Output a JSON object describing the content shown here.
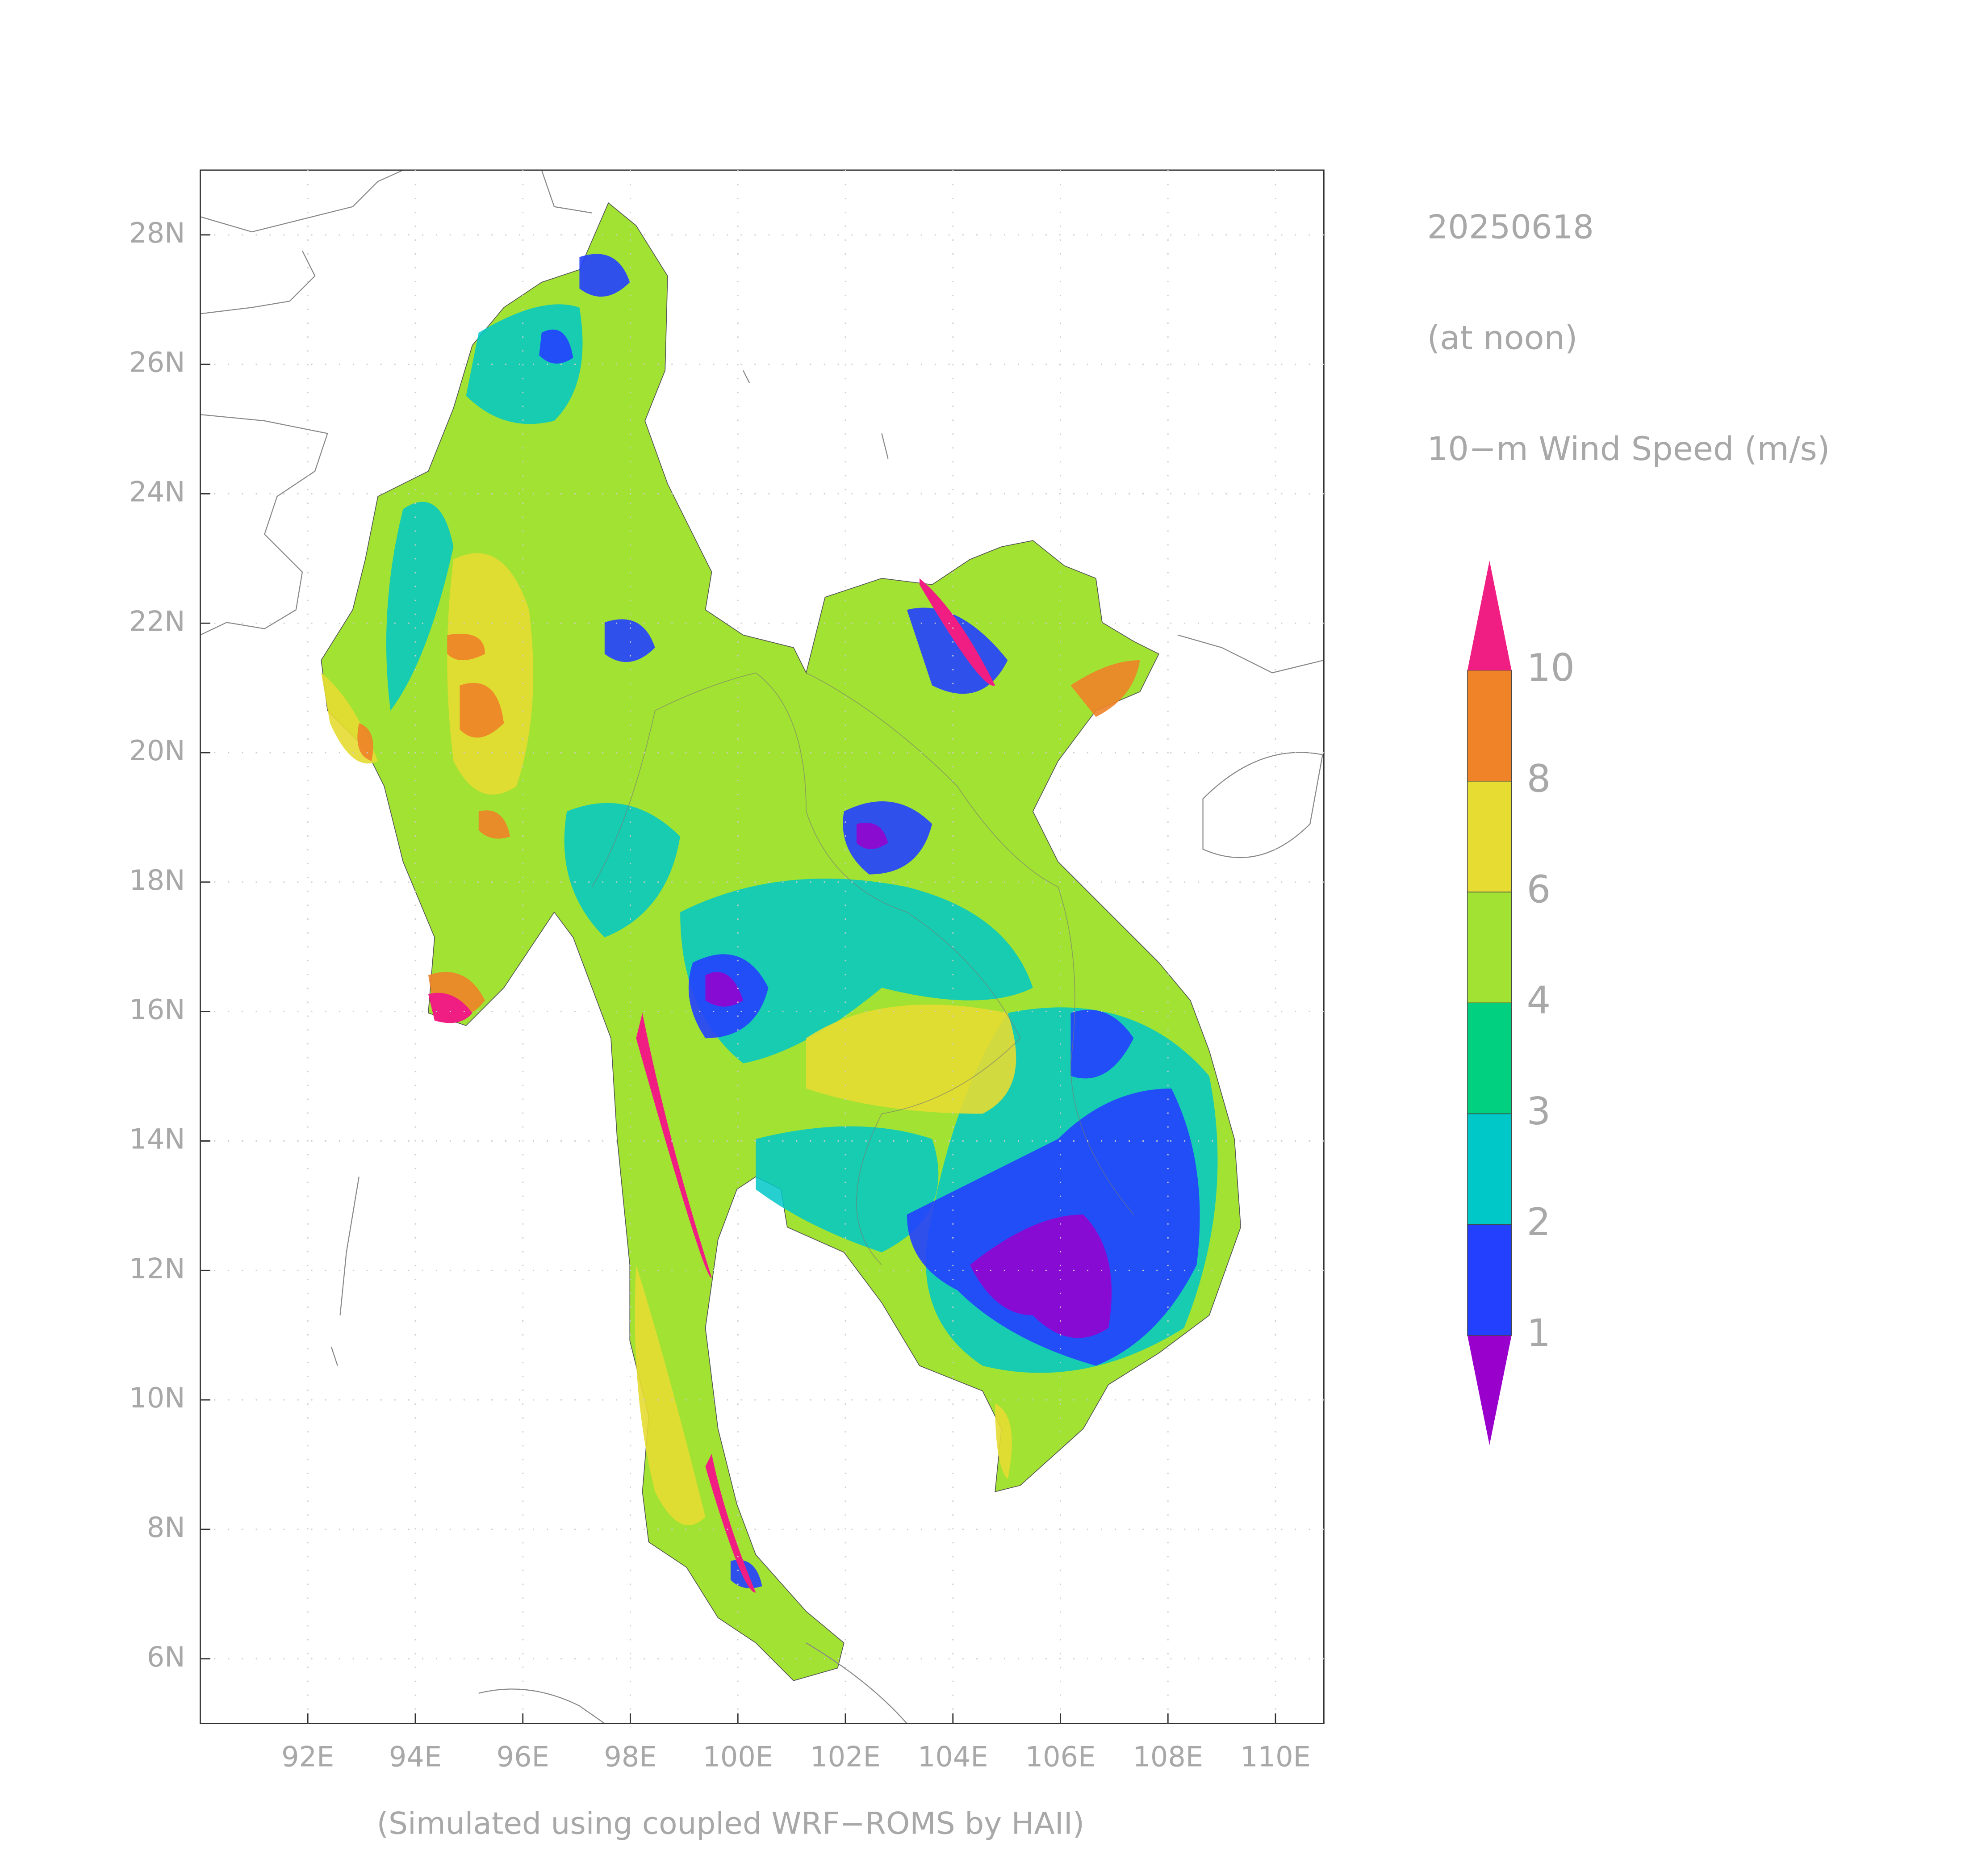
{
  "map": {
    "date": "20250618",
    "time": "(at noon)",
    "variable": "10−m Wind Speed (m/s)",
    "footer": "(Simulated using coupled WRF−ROMS by HAII)",
    "lon_lim": [
      90,
      110.9
    ],
    "lat_lim": [
      5,
      29
    ],
    "lon_ticks": [
      {
        "value": 92,
        "label": "92E"
      },
      {
        "value": 94,
        "label": "94E"
      },
      {
        "value": 96,
        "label": "96E"
      },
      {
        "value": 98,
        "label": "98E"
      },
      {
        "value": 100,
        "label": "100E"
      },
      {
        "value": 102,
        "label": "102E"
      },
      {
        "value": 104,
        "label": "104E"
      },
      {
        "value": 106,
        "label": "106E"
      },
      {
        "value": 108,
        "label": "108E"
      },
      {
        "value": 110,
        "label": "110E"
      }
    ],
    "lat_ticks": [
      {
        "value": 6,
        "label": "6N"
      },
      {
        "value": 8,
        "label": "8N"
      },
      {
        "value": 10,
        "label": "10N"
      },
      {
        "value": 12,
        "label": "12N"
      },
      {
        "value": 14,
        "label": "14N"
      },
      {
        "value": 16,
        "label": "16N"
      },
      {
        "value": 18,
        "label": "18N"
      },
      {
        "value": 20,
        "label": "20N"
      },
      {
        "value": 22,
        "label": "22N"
      },
      {
        "value": 24,
        "label": "24N"
      },
      {
        "value": 26,
        "label": "26N"
      },
      {
        "value": 28,
        "label": "28N"
      }
    ]
  },
  "legend": {
    "levels": [
      1,
      2,
      3,
      4,
      6,
      8,
      10
    ],
    "colors": [
      "#9a00cc",
      "#2440ff",
      "#00c8c8",
      "#00d080",
      "#a2e232",
      "#e6dc32",
      "#f08228",
      "#f01e82"
    ]
  }
}
